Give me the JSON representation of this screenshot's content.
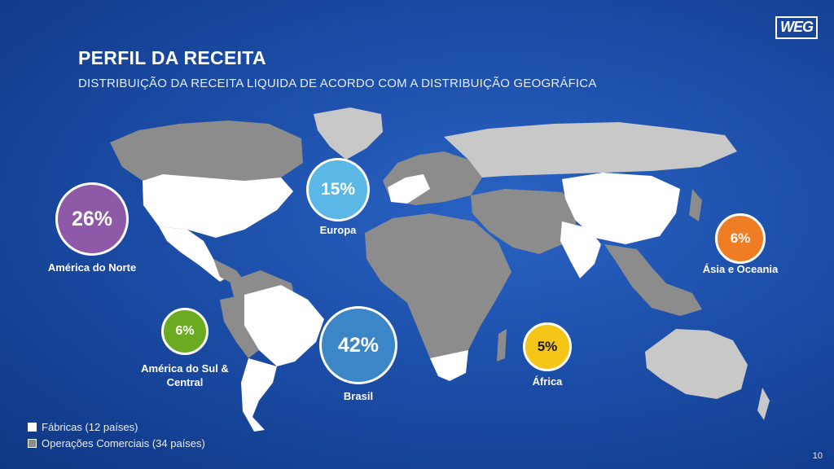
{
  "header": {
    "title": "PERFIL DA RECEITA",
    "subtitle": "DISTRIBUIÇÃO DA RECEITA LIQUIDA DE ACORDO COM A DISTRIBUIÇÃO GEOGRÁFICA",
    "logo_text": "WEG"
  },
  "regions": [
    {
      "name": "América do Norte",
      "percent": "26%",
      "color": "#8e5aa8"
    },
    {
      "name": "Europa",
      "percent": "15%",
      "color": "#5bb8e6"
    },
    {
      "name": "Ásia e Oceania",
      "percent": "6%",
      "color": "#ee7d24"
    },
    {
      "name": "América do Sul & Central",
      "percent": "6%",
      "color": "#6bab1f"
    },
    {
      "name": "Brasil",
      "percent": "42%",
      "color": "#3c86c8"
    },
    {
      "name": "África",
      "percent": "5%",
      "color": "#f5c518"
    }
  ],
  "legend": {
    "factories": "Fábricas (12 países)",
    "commercial": "Operações Comerciais (34 países)"
  },
  "colors": {
    "factories": "#ffffff",
    "commercial": "#8c8c8c",
    "neutral": "#c8c8c8"
  },
  "page_number": "10"
}
